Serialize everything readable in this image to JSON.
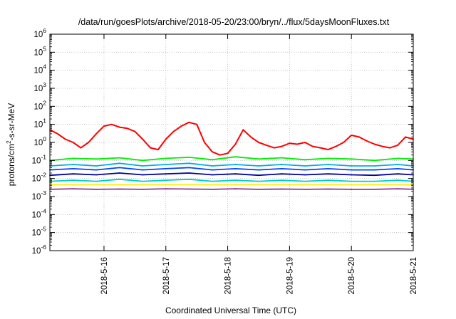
{
  "chart_data": {
    "type": "line",
    "title": "/data/run/goesPlots/archive/2018-05-20/23:00/bryn/../flux/5daysMoonFluxes.txt",
    "xlabel": "Coordinated Universal Time (UTC)",
    "ylabel": "protons/cm²-s-sr-MeV",
    "ylabel_parts": {
      "pre": "protons/cm",
      "sup": "2",
      "post": "-s-sr-MeV"
    },
    "y_scale": "log",
    "ylim": [
      1e-06,
      1000000.0
    ],
    "y_ticks": [
      {
        "exp": -6,
        "base": "10",
        "sup": "-6"
      },
      {
        "exp": -5,
        "base": "10",
        "sup": "-5"
      },
      {
        "exp": -4,
        "base": "10",
        "sup": "-4"
      },
      {
        "exp": -3,
        "base": "10",
        "sup": "-3"
      },
      {
        "exp": -2,
        "base": "10",
        "sup": "-2"
      },
      {
        "exp": -1,
        "base": "10",
        "sup": "-1"
      },
      {
        "exp": 0,
        "base": "10",
        "sup": "0"
      },
      {
        "exp": 1,
        "base": "10",
        "sup": "1"
      },
      {
        "exp": 2,
        "base": "10",
        "sup": "2"
      },
      {
        "exp": 3,
        "base": "10",
        "sup": "3"
      },
      {
        "exp": 4,
        "base": "10",
        "sup": "4"
      },
      {
        "exp": 5,
        "base": "10",
        "sup": "5"
      },
      {
        "exp": 6,
        "base": "10",
        "sup": "6"
      }
    ],
    "xlim": [
      "2018-05-15 03:00",
      "2018-05-21 00:00"
    ],
    "x_ticks": [
      "2018-5-16",
      "2018-5-17",
      "2018-5-18",
      "2018-5-19",
      "2018-5-20",
      "2018-5-21"
    ],
    "grid": true,
    "legend": "none",
    "series": [
      {
        "color": "#ff0000",
        "x": [
          "2018-05-15 03:00",
          "2018-05-15 06:00",
          "2018-05-15 09:00",
          "2018-05-15 12:00",
          "2018-05-15 15:00",
          "2018-05-15 18:00",
          "2018-05-15 21:00",
          "2018-05-16 00:00",
          "2018-05-16 03:00",
          "2018-05-16 06:00",
          "2018-05-16 09:00",
          "2018-05-16 12:00",
          "2018-05-16 15:00",
          "2018-05-16 18:00",
          "2018-05-16 21:00",
          "2018-05-17 00:00",
          "2018-05-17 03:00",
          "2018-05-17 06:00",
          "2018-05-17 09:00",
          "2018-05-17 12:00",
          "2018-05-17 15:00",
          "2018-05-17 18:00",
          "2018-05-17 21:00",
          "2018-05-18 00:00",
          "2018-05-18 03:00",
          "2018-05-18 06:00",
          "2018-05-18 09:00",
          "2018-05-18 12:00",
          "2018-05-18 15:00",
          "2018-05-18 18:00",
          "2018-05-18 21:00",
          "2018-05-19 00:00",
          "2018-05-19 03:00",
          "2018-05-19 06:00",
          "2018-05-19 09:00",
          "2018-05-19 12:00",
          "2018-05-19 15:00",
          "2018-05-19 18:00",
          "2018-05-19 21:00",
          "2018-05-20 00:00",
          "2018-05-20 03:00",
          "2018-05-20 06:00",
          "2018-05-20 09:00",
          "2018-05-20 12:00",
          "2018-05-20 15:00",
          "2018-05-20 18:00",
          "2018-05-20 21:00",
          "2018-05-21 00:00"
        ],
        "values": [
          5,
          3,
          1.5,
          1,
          0.5,
          1,
          3,
          8,
          10,
          7,
          6,
          4,
          1.5,
          0.5,
          0.4,
          1.5,
          4,
          8,
          13,
          10,
          1,
          0.3,
          0.2,
          0.25,
          0.8,
          5,
          2,
          1,
          0.7,
          0.5,
          0.6,
          0.9,
          0.8,
          1,
          0.6,
          0.5,
          0.4,
          0.6,
          1,
          2.5,
          2,
          1.2,
          0.8,
          0.6,
          0.5,
          0.7,
          2,
          1.5
        ]
      },
      {
        "color": "#00ee00",
        "x": [
          "2018-05-15 03:00",
          "2018-05-15 12:00",
          "2018-05-15 21:00",
          "2018-05-16 06:00",
          "2018-05-16 15:00",
          "2018-05-17 00:00",
          "2018-05-17 09:00",
          "2018-05-17 18:00",
          "2018-05-18 03:00",
          "2018-05-18 12:00",
          "2018-05-18 21:00",
          "2018-05-19 06:00",
          "2018-05-19 15:00",
          "2018-05-20 00:00",
          "2018-05-20 09:00",
          "2018-05-20 18:00",
          "2018-05-21 00:00"
        ],
        "values": [
          0.1,
          0.13,
          0.12,
          0.14,
          0.1,
          0.13,
          0.15,
          0.11,
          0.16,
          0.12,
          0.14,
          0.11,
          0.13,
          0.12,
          0.1,
          0.13,
          0.12
        ]
      },
      {
        "color": "#00aaee",
        "x": [
          "2018-05-15 03:00",
          "2018-05-15 12:00",
          "2018-05-15 21:00",
          "2018-05-16 06:00",
          "2018-05-16 15:00",
          "2018-05-17 00:00",
          "2018-05-17 09:00",
          "2018-05-17 18:00",
          "2018-05-18 03:00",
          "2018-05-18 12:00",
          "2018-05-18 21:00",
          "2018-05-19 06:00",
          "2018-05-19 15:00",
          "2018-05-20 00:00",
          "2018-05-20 09:00",
          "2018-05-20 18:00",
          "2018-05-21 00:00"
        ],
        "values": [
          0.05,
          0.06,
          0.05,
          0.07,
          0.05,
          0.06,
          0.07,
          0.05,
          0.06,
          0.05,
          0.06,
          0.05,
          0.06,
          0.05,
          0.05,
          0.06,
          0.05
        ]
      },
      {
        "color": "#0044ff",
        "x": [
          "2018-05-15 03:00",
          "2018-05-15 12:00",
          "2018-05-15 21:00",
          "2018-05-16 06:00",
          "2018-05-16 15:00",
          "2018-05-17 00:00",
          "2018-05-17 09:00",
          "2018-05-17 18:00",
          "2018-05-18 03:00",
          "2018-05-18 12:00",
          "2018-05-18 21:00",
          "2018-05-19 06:00",
          "2018-05-19 15:00",
          "2018-05-20 00:00",
          "2018-05-20 09:00",
          "2018-05-20 18:00",
          "2018-05-21 00:00"
        ],
        "values": [
          0.03,
          0.035,
          0.03,
          0.04,
          0.03,
          0.035,
          0.04,
          0.03,
          0.035,
          0.03,
          0.035,
          0.03,
          0.035,
          0.03,
          0.03,
          0.035,
          0.03
        ]
      },
      {
        "color": "#0000aa",
        "x": [
          "2018-05-15 03:00",
          "2018-05-15 12:00",
          "2018-05-15 21:00",
          "2018-05-16 06:00",
          "2018-05-16 15:00",
          "2018-05-17 00:00",
          "2018-05-17 09:00",
          "2018-05-17 18:00",
          "2018-05-18 03:00",
          "2018-05-18 12:00",
          "2018-05-18 21:00",
          "2018-05-19 06:00",
          "2018-05-19 15:00",
          "2018-05-20 00:00",
          "2018-05-20 09:00",
          "2018-05-20 18:00",
          "2018-05-21 00:00"
        ],
        "values": [
          0.015,
          0.018,
          0.016,
          0.02,
          0.016,
          0.018,
          0.02,
          0.016,
          0.018,
          0.015,
          0.018,
          0.016,
          0.018,
          0.016,
          0.015,
          0.018,
          0.016
        ]
      },
      {
        "color": "#00cccc",
        "x": [
          "2018-05-15 03:00",
          "2018-05-15 12:00",
          "2018-05-15 21:00",
          "2018-05-16 06:00",
          "2018-05-16 15:00",
          "2018-05-17 00:00",
          "2018-05-17 09:00",
          "2018-05-17 18:00",
          "2018-05-18 03:00",
          "2018-05-18 12:00",
          "2018-05-18 21:00",
          "2018-05-19 06:00",
          "2018-05-19 15:00",
          "2018-05-20 00:00",
          "2018-05-20 09:00",
          "2018-05-20 18:00",
          "2018-05-21 00:00"
        ],
        "values": [
          0.007,
          0.008,
          0.007,
          0.009,
          0.007,
          0.008,
          0.009,
          0.007,
          0.008,
          0.007,
          0.008,
          0.007,
          0.008,
          0.007,
          0.007,
          0.008,
          0.007
        ]
      },
      {
        "color": "#ffee00",
        "x": [
          "2018-05-15 03:00",
          "2018-05-15 12:00",
          "2018-05-15 21:00",
          "2018-05-16 06:00",
          "2018-05-16 15:00",
          "2018-05-17 00:00",
          "2018-05-17 09:00",
          "2018-05-17 18:00",
          "2018-05-18 03:00",
          "2018-05-18 12:00",
          "2018-05-18 21:00",
          "2018-05-19 06:00",
          "2018-05-19 15:00",
          "2018-05-20 00:00",
          "2018-05-20 09:00",
          "2018-05-20 18:00",
          "2018-05-21 00:00"
        ],
        "values": [
          0.0045,
          0.0045,
          0.0045,
          0.0045,
          0.0045,
          0.0045,
          0.0045,
          0.0045,
          0.0045,
          0.0045,
          0.0045,
          0.0045,
          0.0045,
          0.0045,
          0.0045,
          0.0045,
          0.0045
        ]
      },
      {
        "color": "#8b3a8b",
        "x": [
          "2018-05-15 03:00",
          "2018-05-15 12:00",
          "2018-05-15 21:00",
          "2018-05-16 06:00",
          "2018-05-16 15:00",
          "2018-05-17 00:00",
          "2018-05-17 09:00",
          "2018-05-17 18:00",
          "2018-05-18 03:00",
          "2018-05-18 12:00",
          "2018-05-18 21:00",
          "2018-05-19 06:00",
          "2018-05-19 15:00",
          "2018-05-20 00:00",
          "2018-05-20 09:00",
          "2018-05-20 18:00",
          "2018-05-21 00:00"
        ],
        "values": [
          0.0025,
          0.0027,
          0.0025,
          0.0026,
          0.0025,
          0.0027,
          0.0026,
          0.0025,
          0.0027,
          0.0025,
          0.0026,
          0.0025,
          0.0026,
          0.0025,
          0.0025,
          0.0027,
          0.0025
        ]
      }
    ]
  }
}
